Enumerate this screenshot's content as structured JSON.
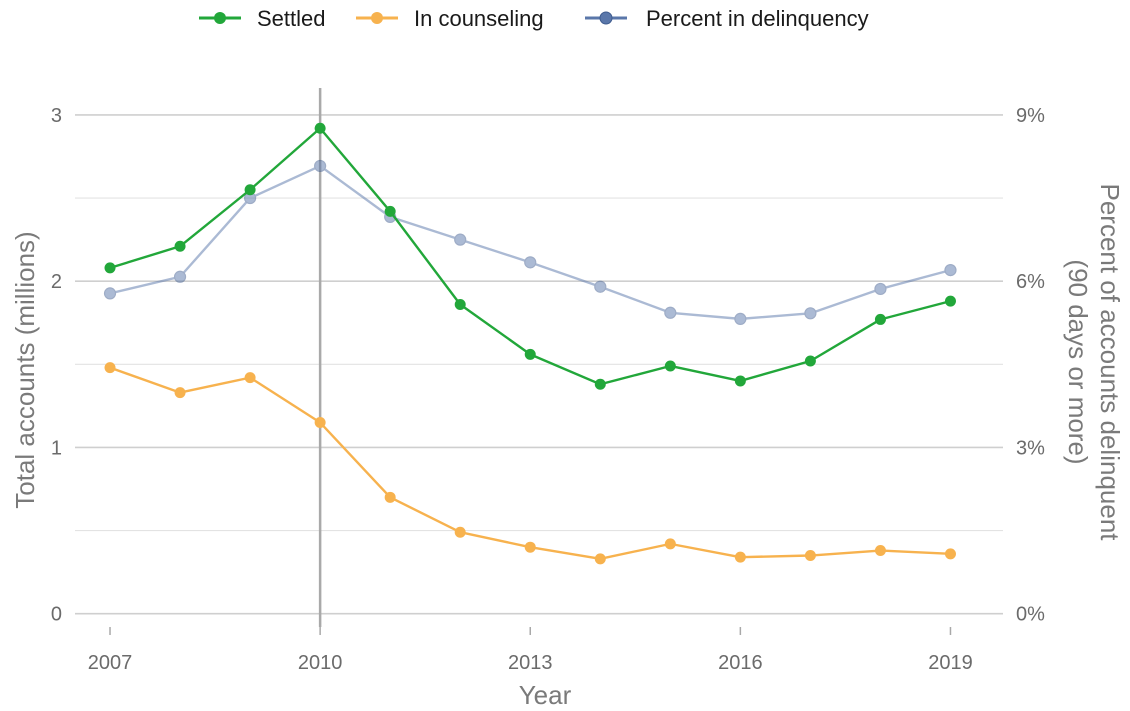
{
  "chart_data": {
    "type": "line",
    "title": "",
    "xlabel": "Year",
    "ylabel": "Total accounts (millions)",
    "y2label_lines": [
      "Percent of accounts delinquent",
      "(90 days or more)"
    ],
    "x": [
      2007,
      2008,
      2009,
      2010,
      2011,
      2012,
      2013,
      2014,
      2015,
      2016,
      2017,
      2018,
      2019
    ],
    "x_ticks": [
      2007,
      2010,
      2013,
      2016,
      2019
    ],
    "x_tick_labels": [
      "2007",
      "2010",
      "2013",
      "2016",
      "2019"
    ],
    "xlim": [
      2006.5,
      2019.75
    ],
    "ylim": [
      -0.08,
      3.15
    ],
    "y_ticks": [
      0,
      1,
      2,
      3
    ],
    "y_tick_labels": [
      "0",
      "1",
      "2",
      "3"
    ],
    "y_minor_ticks": [
      0.5,
      1.5,
      2.5
    ],
    "y2_ticks": [
      0,
      3,
      6,
      9
    ],
    "y2_tick_labels": [
      "0%",
      "3%",
      "6%",
      "9%"
    ],
    "y2_scale_percent_per_million": 3,
    "reference_line_x": 2010,
    "grid": true,
    "legend_position": "top",
    "series": [
      {
        "name": "Settled",
        "axis": "left",
        "color": "#22a73a",
        "values": [
          2.08,
          2.21,
          2.55,
          2.92,
          2.42,
          1.86,
          1.56,
          1.38,
          1.49,
          1.4,
          1.52,
          1.77,
          1.88
        ]
      },
      {
        "name": "In counseling",
        "axis": "left",
        "color": "#f7b24e",
        "values": [
          1.48,
          1.33,
          1.42,
          1.15,
          0.7,
          0.49,
          0.4,
          0.33,
          0.42,
          0.34,
          0.35,
          0.38,
          0.36
        ]
      },
      {
        "name": "Percent in delinquency",
        "axis": "right",
        "color": "#5a77aa",
        "values": [
          5.78,
          6.08,
          7.5,
          8.08,
          7.16,
          6.75,
          6.34,
          5.9,
          5.43,
          5.32,
          5.42,
          5.86,
          6.2
        ]
      }
    ]
  }
}
